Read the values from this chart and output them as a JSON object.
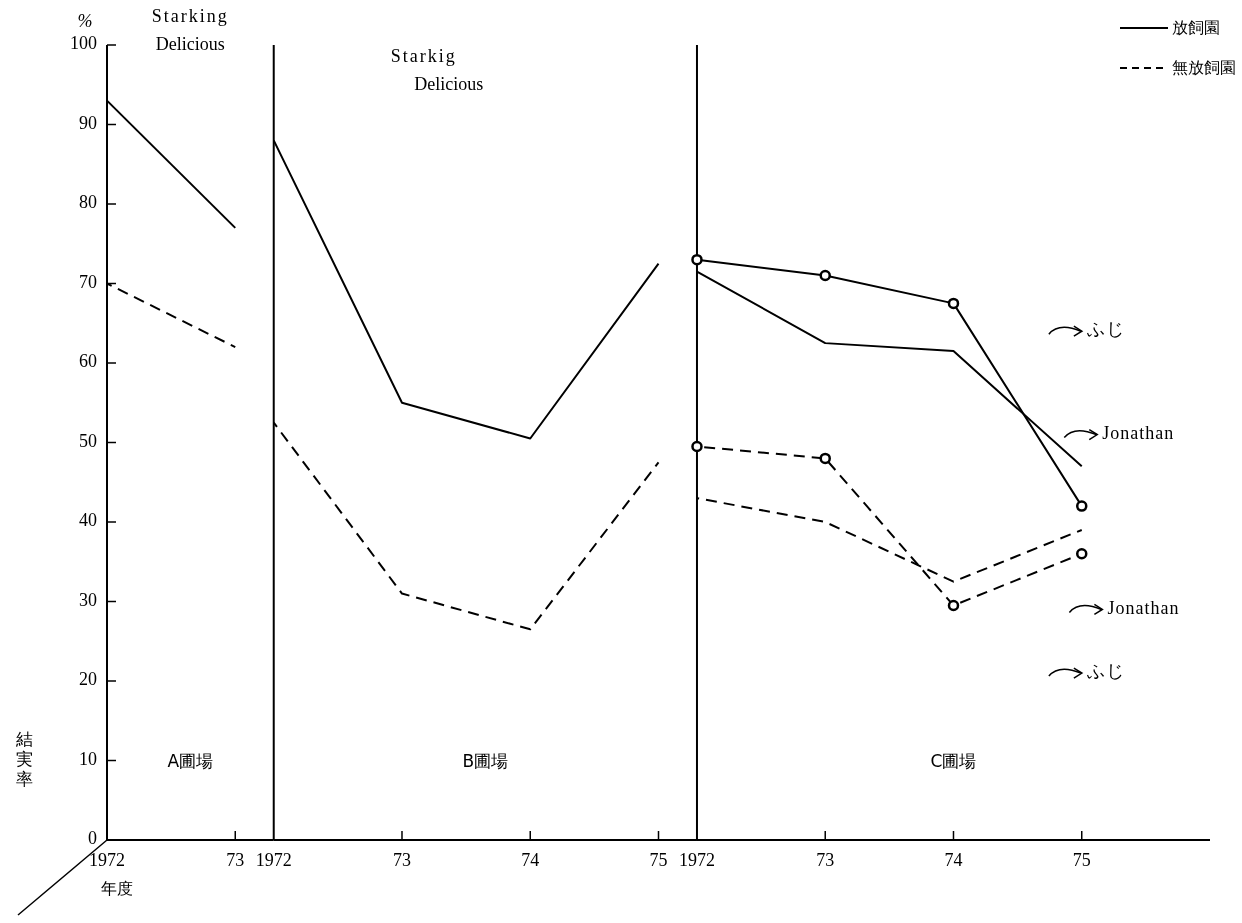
{
  "chart_data": [
    {
      "type": "line",
      "title": "Starking Delicious",
      "xlabel": "年度",
      "ylabel": "結実率",
      "xlim": [
        1972,
        1973.3
      ],
      "xticks": [
        {
          "value": 1972,
          "label": "1972"
        },
        {
          "value": 1973,
          "label": "73"
        }
      ],
      "ylim": [
        0,
        100
      ],
      "yticks": [
        0,
        10,
        20,
        30,
        40,
        50,
        60,
        70,
        80,
        90,
        100
      ],
      "legend": "top right",
      "annotations": [
        "A圃場",
        "%"
      ],
      "x": [
        1972,
        1973
      ],
      "series": [
        {
          "name": "放飼園",
          "color": "#000000",
          "line_style": "solid",
          "values": [
            93,
            77
          ]
        },
        {
          "name": "無放飼園",
          "color": "#000000",
          "line_style": "dashed",
          "values": [
            70,
            62
          ]
        }
      ]
    },
    {
      "type": "line",
      "title": "Starkig Delicious",
      "xlim": [
        1972,
        1975.3
      ],
      "xticks": [
        {
          "value": 1972,
          "label": "1972"
        },
        {
          "value": 1973,
          "label": "73"
        },
        {
          "value": 1974,
          "label": "74"
        },
        {
          "value": 1975,
          "label": "75"
        }
      ],
      "ylim": [
        0,
        100
      ],
      "tick_labels": "x",
      "annotations": [
        "B圃場"
      ],
      "x": [
        1972,
        1973,
        1974,
        1975
      ],
      "series": [
        {
          "color": "#000000",
          "line_style": "solid",
          "values": [
            88,
            55,
            50.5,
            72.5
          ]
        },
        {
          "color": "#000000",
          "line_style": "dashed",
          "values": [
            52.5,
            31,
            26.5,
            47.5
          ]
        }
      ]
    },
    {
      "type": "line",
      "xlim": [
        1972,
        1976
      ],
      "xticks": [
        {
          "value": 1972,
          "label": "1972"
        },
        {
          "value": 1973,
          "label": "73"
        },
        {
          "value": 1974,
          "label": "74"
        },
        {
          "value": 1975,
          "label": "75"
        }
      ],
      "ylim": [
        0,
        100
      ],
      "tick_labels": "x",
      "annotations": [
        "C圃場",
        "ふじ",
        "Jonathan",
        "Jonathan",
        "ふじ"
      ],
      "x": [
        1972,
        1973,
        1974,
        1975
      ],
      "series": [
        {
          "color": "#000000",
          "line_style": "solid",
          "marker": "circle",
          "values": [
            73,
            71,
            67.5,
            42
          ]
        },
        {
          "color": "#000000",
          "line_style": "solid",
          "values": [
            71.5,
            62.5,
            61.5,
            47
          ]
        },
        {
          "color": "#000000",
          "line_style": "dashed",
          "marker": "circle",
          "values": [
            49.5,
            48,
            29.5,
            36
          ]
        },
        {
          "color": "#000000",
          "line_style": "dashed",
          "values": [
            43,
            40,
            32.5,
            39
          ]
        }
      ]
    }
  ]
}
